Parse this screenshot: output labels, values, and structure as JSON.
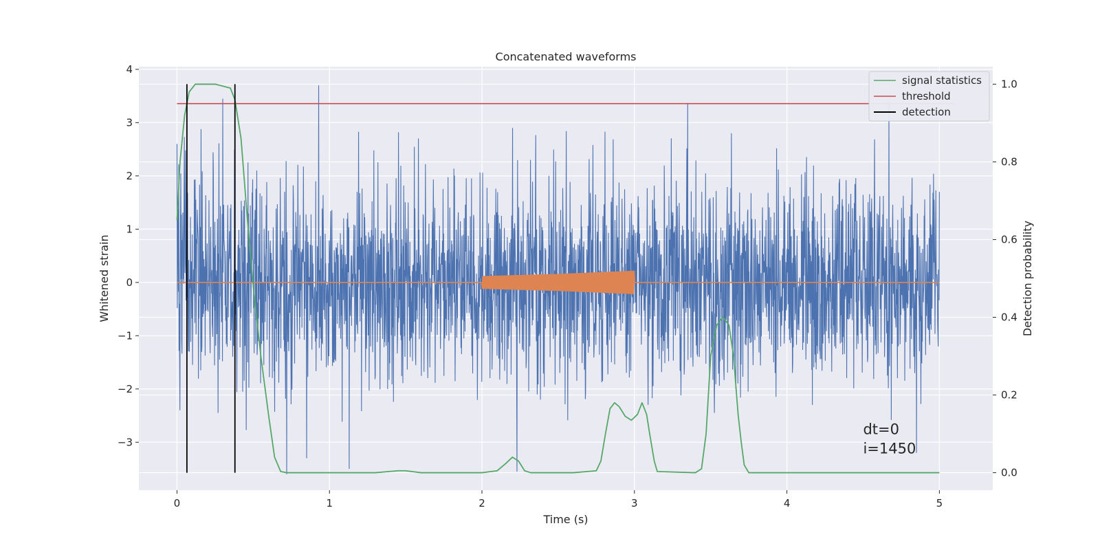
{
  "chart_data": {
    "type": "line",
    "title": "Concatenated waveforms",
    "xlabel": "Time (s)",
    "ylabel": "Whitened strain",
    "y2label": "Detection probability",
    "xlim": [
      -0.25,
      5.35
    ],
    "ylim": [
      -3.9,
      4.05
    ],
    "y2lim": [
      -0.045,
      1.045
    ],
    "xticks": [
      0,
      1,
      2,
      3,
      4,
      5
    ],
    "xtick_labels": [
      "0",
      "1",
      "2",
      "3",
      "4",
      "5"
    ],
    "yticks": [
      -3,
      -2,
      -1,
      0,
      1,
      2,
      3,
      4
    ],
    "ytick_labels": [
      "−3",
      "−2",
      "−1",
      "0",
      "1",
      "2",
      "3",
      "4"
    ],
    "y2ticks": [
      0.0,
      0.2,
      0.4,
      0.6,
      0.8,
      1.0
    ],
    "y2tick_labels": [
      "0.0",
      "0.2",
      "0.4",
      "0.6",
      "0.8",
      "1.0"
    ],
    "grid": true,
    "legend_position": "top-right",
    "background_color": "#eaeaf2",
    "series": [
      {
        "name": "",
        "axis": "left",
        "color": "#4c72b0",
        "kind": "noisy-strain",
        "x_range": [
          0,
          5
        ],
        "envelope_typical": 2.2,
        "peak_points": [
          {
            "x": 0.0,
            "y": 2.6
          },
          {
            "x": 0.02,
            "y": -2.4
          },
          {
            "x": 0.27,
            "y": -2.45
          },
          {
            "x": 0.3,
            "y": 3.45
          },
          {
            "x": 0.72,
            "y": -3.6
          },
          {
            "x": 0.85,
            "y": -3.3
          },
          {
            "x": 0.93,
            "y": 3.7
          },
          {
            "x": 1.13,
            "y": -3.5
          },
          {
            "x": 2.2,
            "y": 2.9
          },
          {
            "x": 2.23,
            "y": -3.55
          },
          {
            "x": 3.35,
            "y": 3.35
          },
          {
            "x": 4.85,
            "y": -3.2
          },
          {
            "x": 4.67,
            "y": 3.4
          },
          {
            "x": 5.0,
            "y": 1.7
          }
        ]
      },
      {
        "name": "",
        "axis": "left",
        "color": "#dd8452",
        "kind": "injected-chirp",
        "x": [
          0,
          2,
          2.5,
          3,
          5
        ],
        "amplitude": [
          0,
          0.12,
          0.16,
          0.22,
          0
        ],
        "active_range": [
          2.0,
          3.0
        ]
      },
      {
        "name": "signal statistics",
        "axis": "right",
        "color": "#55a868",
        "x": [
          0.0,
          0.02,
          0.05,
          0.08,
          0.12,
          0.16,
          0.25,
          0.35,
          0.38,
          0.42,
          0.46,
          0.5,
          0.55,
          0.6,
          0.64,
          0.68,
          0.72,
          1.0,
          1.3,
          1.45,
          1.5,
          1.6,
          2.0,
          2.1,
          2.16,
          2.2,
          2.24,
          2.28,
          2.32,
          2.6,
          2.75,
          2.78,
          2.81,
          2.84,
          2.87,
          2.9,
          2.94,
          2.98,
          3.02,
          3.05,
          3.08,
          3.1,
          3.13,
          3.15,
          3.4,
          3.44,
          3.47,
          3.5,
          3.54,
          3.58,
          3.62,
          3.65,
          3.68,
          3.7,
          3.72,
          3.75,
          4.0,
          4.5,
          5.0
        ],
        "y": [
          0.65,
          0.8,
          0.92,
          0.98,
          1.0,
          1.0,
          1.0,
          0.99,
          0.96,
          0.86,
          0.66,
          0.48,
          0.3,
          0.15,
          0.04,
          0.003,
          0.0,
          0.0,
          0.0,
          0.005,
          0.005,
          0.0,
          0.0,
          0.005,
          0.025,
          0.04,
          0.03,
          0.005,
          0.0,
          0.0,
          0.005,
          0.03,
          0.1,
          0.165,
          0.18,
          0.17,
          0.145,
          0.135,
          0.15,
          0.18,
          0.15,
          0.1,
          0.03,
          0.003,
          0.0,
          0.01,
          0.1,
          0.3,
          0.38,
          0.4,
          0.38,
          0.3,
          0.15,
          0.08,
          0.02,
          0.0,
          0.0,
          0.0,
          0.0
        ]
      },
      {
        "name": "threshold",
        "axis": "right",
        "color": "#c44e52",
        "x": [
          0,
          5.1
        ],
        "y": [
          0.95,
          0.95
        ]
      },
      {
        "name": "detection",
        "axis": "right",
        "color": "#000000",
        "kind": "vlines",
        "x": [
          0.065,
          0.38
        ],
        "y_range": [
          0.0,
          1.0
        ]
      }
    ],
    "annotation": {
      "lines": [
        "dt=0",
        "i=1450"
      ],
      "x": 4.5,
      "y": -2.85
    }
  }
}
